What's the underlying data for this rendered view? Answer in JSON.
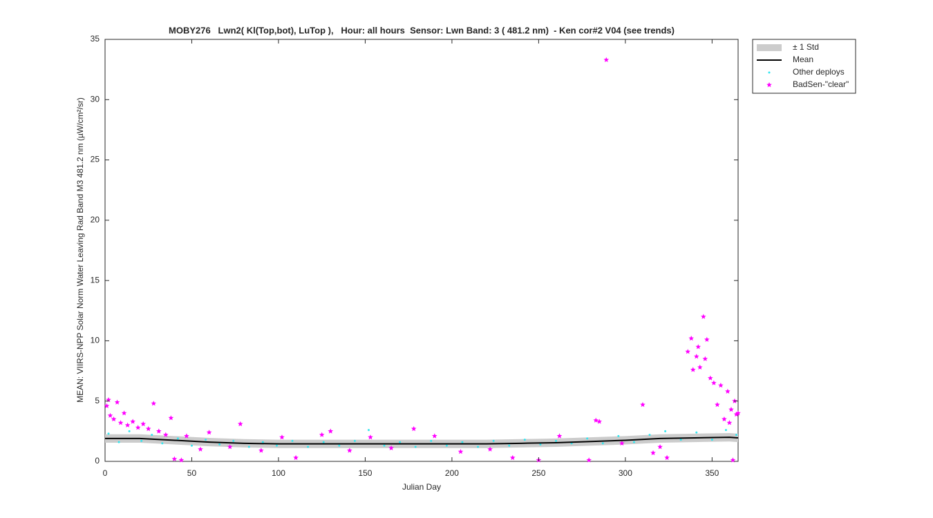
{
  "chart_data": {
    "type": "scatter",
    "title": "MOBY276   Lwn2( Kl(Top,bot), LuTop ),   Hour: all hours  Sensor: Lwn Band: 3 ( 481.2 nm)  - Ken cor#2 V04 (see trends)",
    "x_label": "Julian Day",
    "y_label": "MEAN: VIIRS-NPP Solar Norm Water Leaving Rad Band M3 481.2 nm (µW/cm²/sr)",
    "xlim": [
      0,
      365
    ],
    "ylim": [
      0,
      35
    ],
    "xticks": [
      0,
      50,
      100,
      150,
      200,
      250,
      300,
      350
    ],
    "yticks": [
      0,
      5,
      10,
      15,
      20,
      25,
      30,
      35
    ],
    "legend": "outside-top-right",
    "band": {
      "name": "± 1 Std",
      "color": "#cccccc",
      "x": [
        0,
        20,
        40,
        60,
        80,
        100,
        120,
        140,
        160,
        180,
        200,
        220,
        240,
        260,
        280,
        300,
        320,
        340,
        360,
        365
      ],
      "lower": [
        1.55,
        1.55,
        1.4,
        1.25,
        1.15,
        1.1,
        1.1,
        1.1,
        1.1,
        1.1,
        1.1,
        1.1,
        1.15,
        1.2,
        1.3,
        1.4,
        1.55,
        1.6,
        1.65,
        1.6
      ],
      "upper": [
        2.25,
        2.25,
        2.1,
        1.95,
        1.85,
        1.8,
        1.8,
        1.8,
        1.8,
        1.8,
        1.8,
        1.8,
        1.85,
        1.9,
        2.0,
        2.1,
        2.25,
        2.3,
        2.35,
        2.3
      ]
    },
    "series": [
      {
        "name": "Mean",
        "kind": "line",
        "color": "#000000",
        "x": [
          0,
          20,
          40,
          60,
          80,
          100,
          120,
          140,
          160,
          180,
          200,
          220,
          240,
          260,
          280,
          300,
          320,
          340,
          360,
          365
        ],
        "values": [
          1.9,
          1.9,
          1.75,
          1.6,
          1.5,
          1.45,
          1.45,
          1.45,
          1.45,
          1.45,
          1.45,
          1.45,
          1.5,
          1.55,
          1.65,
          1.75,
          1.9,
          1.95,
          2.0,
          1.95
        ]
      },
      {
        "name": "Other deploys",
        "kind": "dots",
        "color": "#33e6f0",
        "x": [
          2,
          8,
          14,
          21,
          27,
          33,
          42,
          50,
          58,
          66,
          74,
          83,
          91,
          99,
          108,
          117,
          126,
          135,
          144,
          152,
          161,
          170,
          179,
          188,
          197,
          206,
          215,
          224,
          233,
          242,
          251,
          260,
          269,
          278,
          287,
          296,
          305,
          314,
          323,
          332,
          341,
          350,
          358,
          364
        ],
        "values": [
          2.3,
          1.6,
          2.5,
          1.7,
          2.2,
          1.5,
          1.9,
          1.3,
          1.8,
          1.4,
          1.7,
          1.2,
          1.6,
          1.3,
          1.7,
          1.2,
          1.6,
          1.3,
          1.7,
          2.6,
          1.3,
          1.6,
          1.2,
          1.7,
          1.3,
          1.6,
          1.2,
          1.7,
          1.3,
          1.8,
          1.4,
          1.7,
          1.5,
          1.9,
          1.5,
          2.1,
          1.6,
          2.2,
          2.5,
          1.8,
          2.4,
          1.8,
          2.6,
          2.2
        ]
      },
      {
        "name": "BadSen-\"clear\"",
        "kind": "stars",
        "color": "#ff00ff",
        "x": [
          1,
          2,
          3,
          5,
          7,
          9,
          11,
          13,
          16,
          19,
          22,
          25,
          28,
          31,
          35,
          38,
          40,
          44,
          47,
          55,
          60,
          72,
          78,
          90,
          102,
          110,
          125,
          130,
          141,
          153,
          165,
          178,
          190,
          205,
          222,
          235,
          250,
          262,
          279,
          283,
          285,
          289,
          298,
          310,
          316,
          320,
          324,
          336,
          338,
          339,
          341,
          342,
          343,
          345,
          346,
          347,
          349,
          351,
          353,
          355,
          357,
          359,
          360,
          361,
          362,
          363,
          364,
          365
        ],
        "values": [
          4.6,
          5.1,
          3.8,
          3.5,
          4.9,
          3.2,
          4.0,
          3.0,
          3.3,
          2.8,
          3.1,
          2.7,
          4.8,
          2.5,
          2.2,
          3.6,
          0.2,
          0.1,
          2.1,
          1.0,
          2.4,
          1.2,
          3.1,
          0.9,
          2.0,
          0.3,
          2.2,
          2.5,
          0.9,
          2.0,
          1.1,
          2.7,
          2.1,
          0.8,
          1.0,
          0.3,
          0.1,
          2.1,
          0.1,
          3.4,
          3.3,
          33.3,
          1.5,
          4.7,
          0.7,
          1.2,
          0.3,
          9.1,
          10.2,
          7.6,
          8.7,
          9.5,
          7.8,
          12.0,
          8.5,
          10.1,
          6.9,
          6.5,
          4.7,
          6.3,
          3.5,
          5.8,
          3.2,
          4.3,
          0.1,
          5.0,
          3.9,
          4.0
        ]
      }
    ]
  }
}
